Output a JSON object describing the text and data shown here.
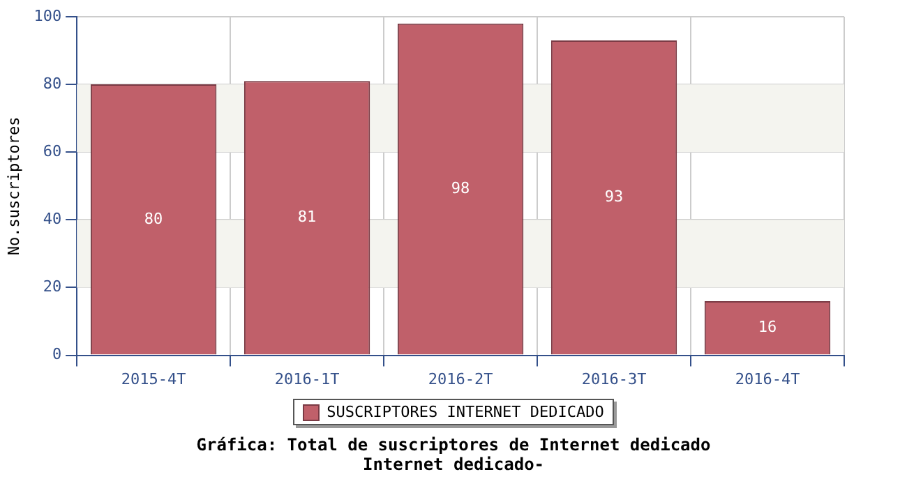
{
  "chart_data": {
    "type": "bar",
    "title": "Gráfica: Total de suscriptores de Internet dedicado",
    "subtitle": "Internet dedicado-",
    "ylabel": "No.suscriptores",
    "categories": [
      "2015-4T",
      "2016-1T",
      "2016-2T",
      "2016-3T",
      "2016-4T"
    ],
    "series": [
      {
        "name": "SUSCRIPTORES INTERNET DEDICADO",
        "color": "#c0606a",
        "values": [
          80,
          81,
          98,
          93,
          16
        ]
      }
    ],
    "ylim": [
      0,
      100
    ],
    "yticks": [
      0,
      20,
      40,
      60,
      80,
      100
    ],
    "grid": true,
    "legend": "bottom",
    "data_labels": true
  }
}
